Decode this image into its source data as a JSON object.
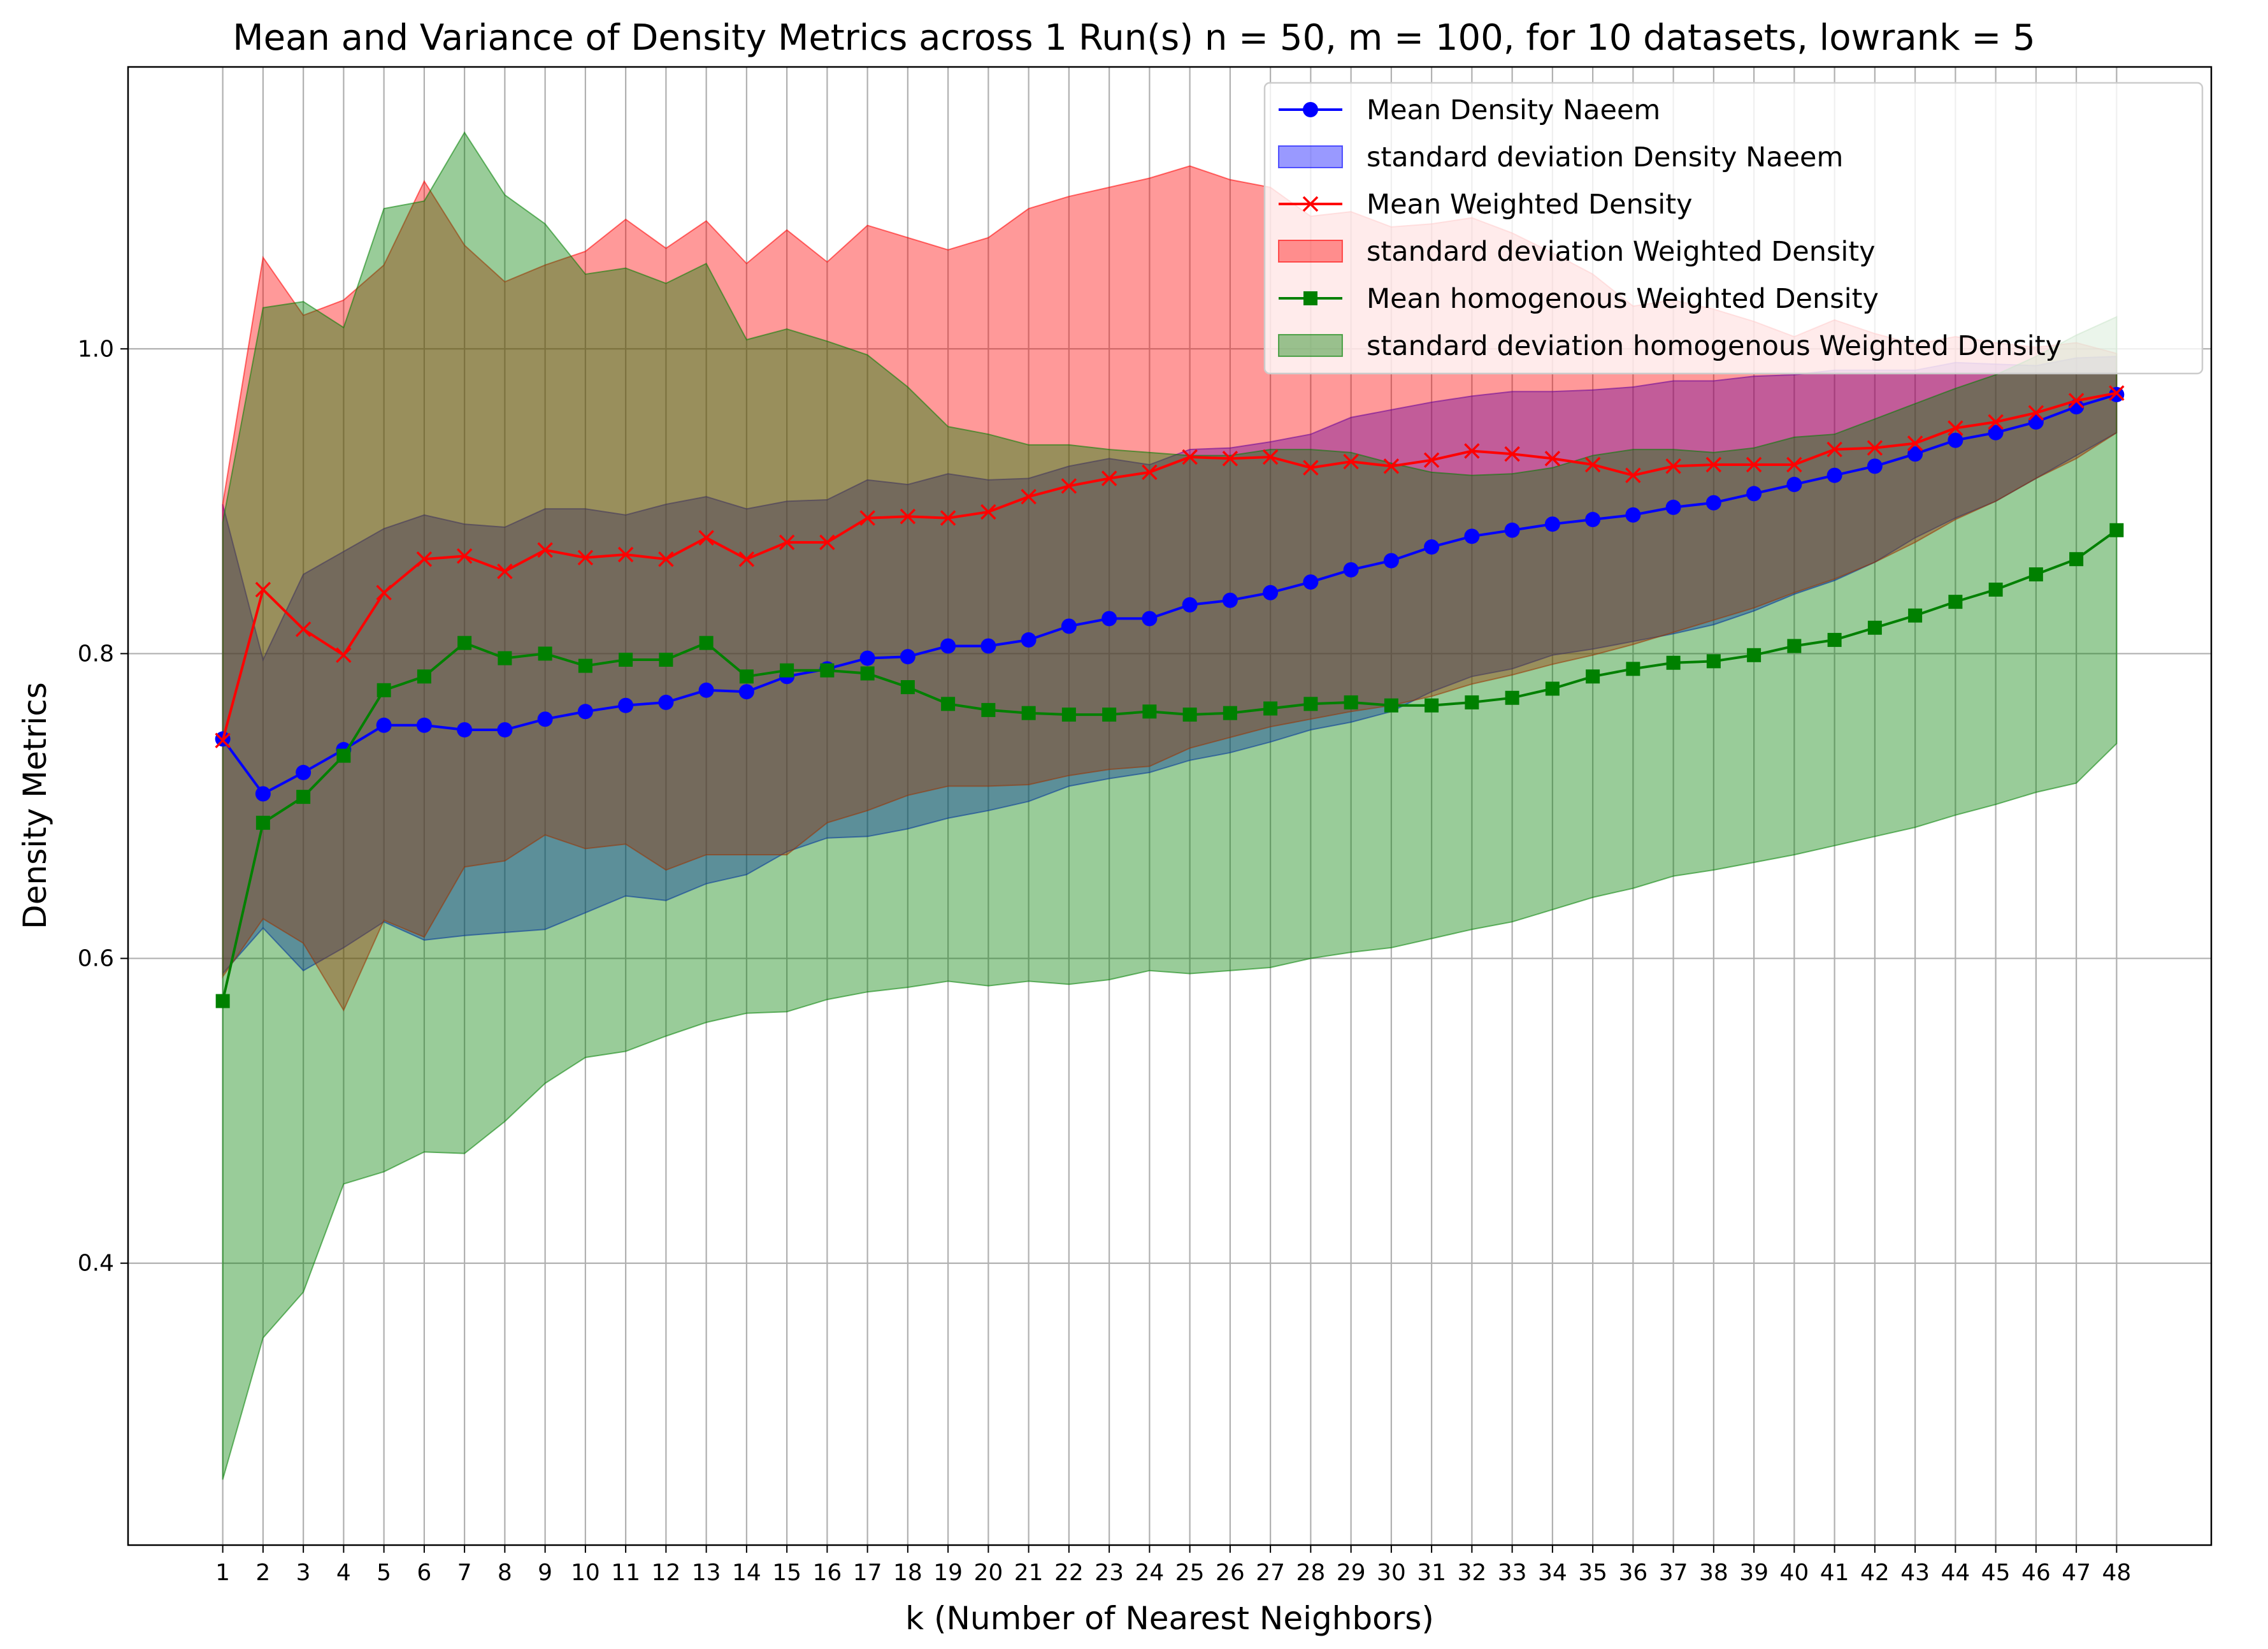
{
  "chart_data": {
    "type": "line",
    "title": "Mean and Variance of Density Metrics across 1 Run(s) n  = 50, m  = 100, for 10 datasets, lowrank = 5",
    "xlabel": "k (Number of Nearest Neighbors)",
    "ylabel": "Density Metrics",
    "xlim": [
      -1.35,
      50.35
    ],
    "ylim": [
      0.215,
      1.185
    ],
    "yticks": [
      0.4,
      0.6,
      0.8,
      1.0
    ],
    "ytick_labels": [
      "0.4",
      "0.6",
      "0.8",
      "1.0"
    ],
    "grid": true,
    "legend_position": "top-right",
    "x": [
      1,
      2,
      3,
      4,
      5,
      6,
      7,
      8,
      9,
      10,
      11,
      12,
      13,
      14,
      15,
      16,
      17,
      18,
      19,
      20,
      21,
      22,
      23,
      24,
      25,
      26,
      27,
      28,
      29,
      30,
      31,
      32,
      33,
      34,
      35,
      36,
      37,
      38,
      39,
      40,
      41,
      42,
      43,
      44,
      45,
      46,
      47,
      48
    ],
    "series": [
      {
        "name": "Mean Density Naeem",
        "color": "#0000ff",
        "marker": "circle",
        "values": [
          0.744,
          0.708,
          0.722,
          0.737,
          0.753,
          0.753,
          0.75,
          0.75,
          0.757,
          0.762,
          0.766,
          0.768,
          0.776,
          0.775,
          0.785,
          0.79,
          0.797,
          0.798,
          0.805,
          0.805,
          0.809,
          0.818,
          0.823,
          0.823,
          0.832,
          0.835,
          0.84,
          0.847,
          0.855,
          0.861,
          0.87,
          0.877,
          0.881,
          0.885,
          0.888,
          0.891,
          0.896,
          0.899,
          0.905,
          0.911,
          0.917,
          0.923,
          0.931,
          0.94,
          0.945,
          0.952,
          0.962,
          0.97
        ],
        "band_lower": [
          0.59,
          0.62,
          0.592,
          0.607,
          0.624,
          0.612,
          0.615,
          0.617,
          0.619,
          0.63,
          0.641,
          0.638,
          0.649,
          0.655,
          0.67,
          0.679,
          0.68,
          0.685,
          0.692,
          0.697,
          0.703,
          0.713,
          0.718,
          0.722,
          0.73,
          0.735,
          0.742,
          0.75,
          0.755,
          0.762,
          0.775,
          0.785,
          0.79,
          0.799,
          0.803,
          0.808,
          0.813,
          0.819,
          0.828,
          0.839,
          0.848,
          0.86,
          0.876,
          0.889,
          0.9,
          0.915,
          0.93,
          0.945
        ],
        "band_upper": [
          0.898,
          0.796,
          0.852,
          0.867,
          0.882,
          0.891,
          0.885,
          0.883,
          0.895,
          0.895,
          0.891,
          0.898,
          0.903,
          0.895,
          0.9,
          0.901,
          0.914,
          0.911,
          0.918,
          0.914,
          0.915,
          0.923,
          0.928,
          0.924,
          0.934,
          0.935,
          0.939,
          0.944,
          0.955,
          0.96,
          0.965,
          0.969,
          0.972,
          0.972,
          0.973,
          0.975,
          0.979,
          0.979,
          0.982,
          0.983,
          0.986,
          0.986,
          0.986,
          0.991,
          0.99,
          0.989,
          0.994,
          0.995
        ]
      },
      {
        "name": "Mean Weighted Density",
        "color": "#ff0000",
        "marker": "x",
        "values": [
          0.743,
          0.842,
          0.816,
          0.799,
          0.84,
          0.862,
          0.864,
          0.854,
          0.868,
          0.863,
          0.865,
          0.862,
          0.876,
          0.862,
          0.873,
          0.873,
          0.889,
          0.89,
          0.889,
          0.893,
          0.903,
          0.91,
          0.915,
          0.919,
          0.929,
          0.928,
          0.929,
          0.922,
          0.926,
          0.923,
          0.927,
          0.933,
          0.931,
          0.928,
          0.924,
          0.917,
          0.923,
          0.924,
          0.924,
          0.924,
          0.934,
          0.935,
          0.938,
          0.948,
          0.952,
          0.958,
          0.966,
          0.971
        ],
        "band_lower": [
          0.588,
          0.626,
          0.61,
          0.566,
          0.625,
          0.614,
          0.66,
          0.664,
          0.681,
          0.672,
          0.675,
          0.658,
          0.668,
          0.668,
          0.668,
          0.689,
          0.697,
          0.707,
          0.713,
          0.713,
          0.714,
          0.72,
          0.724,
          0.726,
          0.738,
          0.745,
          0.752,
          0.757,
          0.762,
          0.766,
          0.772,
          0.78,
          0.786,
          0.793,
          0.799,
          0.806,
          0.814,
          0.822,
          0.83,
          0.84,
          0.849,
          0.86,
          0.873,
          0.888,
          0.9,
          0.915,
          0.928,
          0.945
        ],
        "band_upper": [
          0.898,
          1.06,
          1.022,
          1.032,
          1.055,
          1.11,
          1.068,
          1.044,
          1.055,
          1.064,
          1.085,
          1.066,
          1.084,
          1.056,
          1.078,
          1.057,
          1.081,
          1.073,
          1.065,
          1.073,
          1.092,
          1.1,
          1.106,
          1.112,
          1.12,
          1.111,
          1.106,
          1.087,
          1.09,
          1.08,
          1.082,
          1.086,
          1.076,
          1.063,
          1.049,
          1.028,
          1.032,
          1.026,
          1.018,
          1.008,
          1.019,
          1.01,
          1.003,
          1.008,
          1.004,
          1.001,
          1.004,
          0.997
        ]
      },
      {
        "name": "Mean homogenous Weighted Density",
        "color": "#008000",
        "marker": "square",
        "values": [
          0.572,
          0.689,
          0.706,
          0.733,
          0.776,
          0.785,
          0.807,
          0.797,
          0.8,
          0.792,
          0.796,
          0.796,
          0.807,
          0.785,
          0.789,
          0.789,
          0.787,
          0.778,
          0.767,
          0.763,
          0.761,
          0.76,
          0.76,
          0.762,
          0.76,
          0.761,
          0.764,
          0.767,
          0.768,
          0.766,
          0.766,
          0.768,
          0.771,
          0.777,
          0.785,
          0.79,
          0.794,
          0.795,
          0.799,
          0.805,
          0.809,
          0.817,
          0.825,
          0.834,
          0.842,
          0.852,
          0.862,
          0.881
        ],
        "band_lower": [
          0.258,
          0.351,
          0.381,
          0.452,
          0.46,
          0.473,
          0.472,
          0.493,
          0.518,
          0.535,
          0.539,
          0.549,
          0.558,
          0.564,
          0.565,
          0.573,
          0.578,
          0.581,
          0.585,
          0.582,
          0.585,
          0.583,
          0.586,
          0.592,
          0.59,
          0.592,
          0.594,
          0.6,
          0.604,
          0.607,
          0.613,
          0.619,
          0.624,
          0.632,
          0.64,
          0.646,
          0.654,
          0.658,
          0.663,
          0.668,
          0.674,
          0.68,
          0.686,
          0.694,
          0.701,
          0.709,
          0.715,
          0.741
        ],
        "band_upper": [
          0.886,
          1.027,
          1.031,
          1.014,
          1.092,
          1.097,
          1.142,
          1.101,
          1.082,
          1.049,
          1.053,
          1.043,
          1.056,
          1.006,
          1.013,
          1.005,
          0.996,
          0.975,
          0.949,
          0.944,
          0.937,
          0.937,
          0.934,
          0.932,
          0.93,
          0.93,
          0.934,
          0.934,
          0.932,
          0.925,
          0.919,
          0.917,
          0.918,
          0.922,
          0.93,
          0.934,
          0.934,
          0.932,
          0.935,
          0.942,
          0.944,
          0.954,
          0.964,
          0.974,
          0.983,
          0.995,
          1.009,
          1.021
        ]
      }
    ],
    "legend": [
      {
        "label": "Mean Density Naeem",
        "kind": "line",
        "color": "#0000ff",
        "marker": "circle"
      },
      {
        "label": "standard deviation Density Naeem",
        "kind": "patch",
        "color": "#0000ff",
        "opacity": 0.4
      },
      {
        "label": "Mean Weighted Density",
        "kind": "line",
        "color": "#ff0000",
        "marker": "x"
      },
      {
        "label": "standard deviation Weighted Density",
        "kind": "patch",
        "color": "#ff0000",
        "opacity": 0.4
      },
      {
        "label": "Mean homogenous Weighted Density",
        "kind": "line",
        "color": "#008000",
        "marker": "square"
      },
      {
        "label": "standard deviation homogenous Weighted Density",
        "kind": "patch",
        "color": "#008000",
        "opacity": 0.4
      }
    ]
  }
}
